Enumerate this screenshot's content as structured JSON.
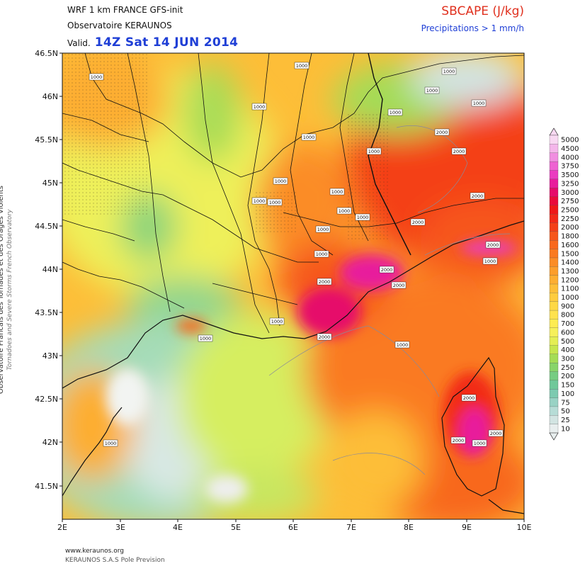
{
  "header": {
    "model_line": "WRF 1 km FRANCE  GFS-init",
    "organization": "Observatoire KERAUNOS",
    "valid_prefix": "Valid.",
    "valid_time": "14Z Sat 14 JUN 2014",
    "field_title": "SBCAPE (J/kg)",
    "precip_note": "Precipitations > 1 mm/h"
  },
  "side_text": {
    "line1": "Observatoire Francais des Tornades et des Orages Violents",
    "line2": "Tornadoes and Severe Storms French Observatory"
  },
  "footer": {
    "website": "www.keraunos.org",
    "credit": "KERAUNOS S.A.S Pole Prevision"
  },
  "map": {
    "lat_labels": [
      "46.5N",
      "46N",
      "45.5N",
      "45N",
      "44.5N",
      "44N",
      "43.5N",
      "43N",
      "42.5N",
      "42N",
      "41.5N"
    ],
    "lon_labels": [
      "2E",
      "3E",
      "4E",
      "5E",
      "6E",
      "7E",
      "8E",
      "9E",
      "10E"
    ],
    "contour_labels": [
      "1000",
      "1000",
      "1000",
      "1000",
      "1000",
      "1000",
      "1000",
      "1000",
      "1000",
      "1000",
      "1000",
      "1000",
      "1000",
      "1000",
      "1000",
      "1000",
      "1000",
      "1000",
      "1000",
      "1000",
      "2000",
      "2000",
      "2000",
      "2000",
      "2000",
      "2000",
      "2000",
      "2000",
      "2000",
      "2000",
      "2000",
      "2000",
      "1000",
      "1000",
      "1000"
    ],
    "extent": {
      "lon_min": 2,
      "lon_max": 10,
      "lat_min": 41.1,
      "lat_max": 46.5
    }
  },
  "legend": {
    "levels": [
      "5000",
      "4500",
      "4000",
      "3750",
      "3500",
      "3250",
      "3000",
      "2750",
      "2500",
      "2250",
      "2000",
      "1800",
      "1600",
      "1500",
      "1400",
      "1300",
      "1200",
      "1100",
      "1000",
      "900",
      "800",
      "700",
      "600",
      "500",
      "400",
      "300",
      "250",
      "200",
      "150",
      "100",
      "75",
      "50",
      "25",
      "10"
    ],
    "colors": [
      "#f8d8f2",
      "#f4b6ea",
      "#f08ee0",
      "#ee62d2",
      "#ea3cc0",
      "#e81c9c",
      "#e60a6a",
      "#ea0a3a",
      "#ee1818",
      "#f22a18",
      "#f44018",
      "#f6561a",
      "#f8681c",
      "#fa7a20",
      "#fb8c26",
      "#fc9e2c",
      "#fdae32",
      "#fdbe38",
      "#fecc3e",
      "#fed846",
      "#fee24e",
      "#fdec52",
      "#f6f05a",
      "#e4ee54",
      "#c6e64e",
      "#a4dc56",
      "#88d46a",
      "#76cc82",
      "#70c89a",
      "#7ccab0",
      "#98d2c4",
      "#b6dcd6",
      "#d2e4e2",
      "#e8eeee"
    ]
  }
}
